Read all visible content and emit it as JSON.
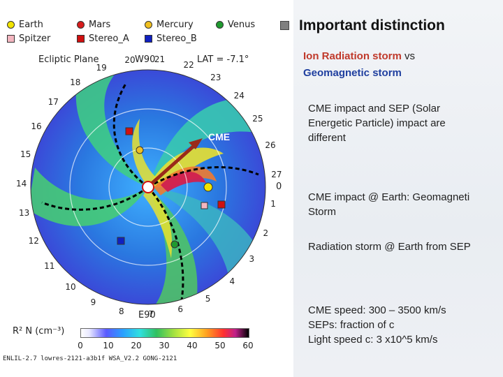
{
  "legend": {
    "items": [
      {
        "label": "Earth",
        "shape": "circle",
        "color": "#f2e400"
      },
      {
        "label": "Mars",
        "shape": "circle",
        "color": "#d81c1c"
      },
      {
        "label": "Mercury",
        "shape": "circle",
        "color": "#f0c020"
      },
      {
        "label": "Venus",
        "shape": "circle",
        "color": "#1f9a2f"
      },
      {
        "label": "Spitzer",
        "shape": "square",
        "color": "#f4b6c0"
      },
      {
        "label": "Stereo_A",
        "shape": "square",
        "color": "#d01010"
      },
      {
        "label": "Stereo_B",
        "shape": "square",
        "color": "#1020c0"
      }
    ]
  },
  "plot": {
    "plane_label": "Ecliptic Plane",
    "w90_label": "W90",
    "e90_label": "E90",
    "lat_label": "LAT = -7.1°",
    "zero_label": "0",
    "cme_label": "CME",
    "clock_ticks": [
      "1",
      "2",
      "3",
      "4",
      "5",
      "6",
      "7",
      "8",
      "9",
      "10",
      "11",
      "12",
      "13",
      "14",
      "15",
      "16",
      "17",
      "18",
      "19",
      "20",
      "21",
      "22",
      "23",
      "24",
      "25",
      "26",
      "27"
    ],
    "colorbar_title": "R² N (cm⁻³)",
    "colorbar_ticks": [
      "0",
      "10",
      "20",
      "30",
      "40",
      "50",
      "60"
    ],
    "footer": "ENLIL-2.7 lowres-2121-a3b1f WSA_V2.2 GONG-2121"
  },
  "slide": {
    "title": "Important distinction",
    "subtitle_part1": "Ion Radiation storm",
    "subtitle_part2": " vs",
    "subtitle_line2": "Geomagnetic storm",
    "para1_line1": "CME impact and SEP (Solar",
    "para1_line2": "Energetic Particle) impact are",
    "para1_line3": "different",
    "para2_line1": "CME impact @ Earth: Geomagneti",
    "para2_line2": "Storm",
    "para3": "Radiation storm @ Earth from SEP",
    "para4_line1": "CME speed: 300 – 3500 km/s",
    "para4_line2": "SEPs: fraction of c",
    "para4_line3": "Light speed c: 3 x10^5 km/s"
  },
  "colors": {
    "subtitle_red": "#c0392b",
    "subtitle_blue": "#1f3f9f",
    "arrow": "#9a2a1a"
  }
}
